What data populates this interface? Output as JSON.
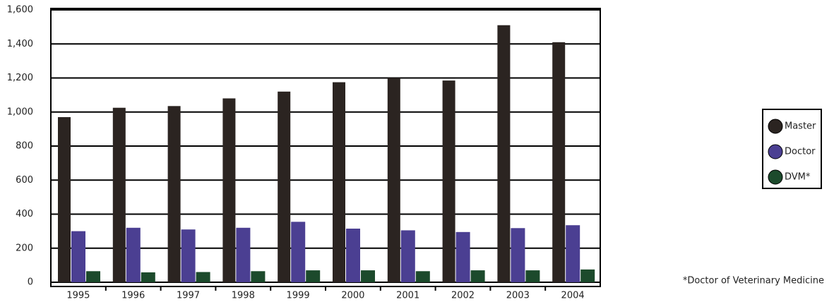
{
  "chart_data": {
    "type": "bar",
    "categories": [
      "1995",
      "1996",
      "1997",
      "1998",
      "1999",
      "2000",
      "2001",
      "2002",
      "2003",
      "2004"
    ],
    "series": [
      {
        "name": "Master",
        "color": "#2b2421",
        "values": [
          970,
          1025,
          1035,
          1080,
          1120,
          1175,
          1200,
          1185,
          1510,
          1410
        ]
      },
      {
        "name": "Doctor",
        "color": "#4b3f92",
        "values": [
          300,
          320,
          310,
          320,
          355,
          315,
          305,
          295,
          318,
          335
        ]
      },
      {
        "name": "DVM*",
        "color": "#1c4a2c",
        "values": [
          65,
          58,
          60,
          65,
          70,
          70,
          65,
          70,
          70,
          75
        ]
      }
    ],
    "ylim": [
      0,
      1600
    ],
    "yticks": [
      0,
      200,
      400,
      600,
      800,
      {
        "value": 1000,
        "label": "1,000"
      },
      {
        "value": 1200,
        "label": "1,200"
      },
      {
        "value": 1400,
        "label": "1,400"
      },
      {
        "value": 1600,
        "label": "1,600"
      }
    ],
    "grid": true,
    "legend": "right",
    "footnote": "*Doctor of Veterinary Medicine"
  }
}
